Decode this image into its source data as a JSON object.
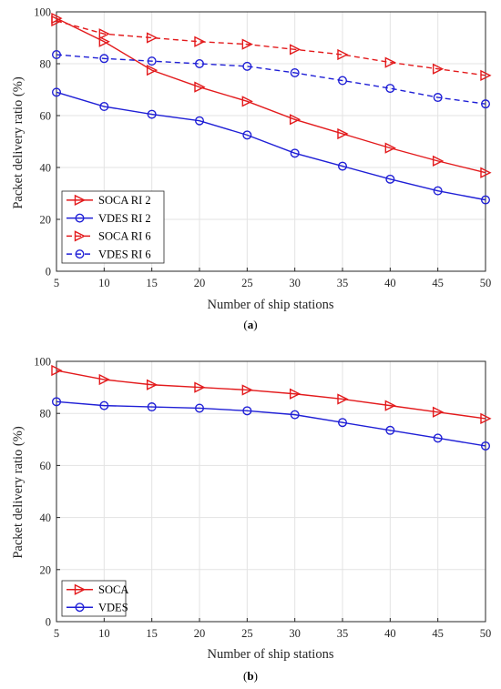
{
  "chart_data": [
    {
      "type": "line",
      "panel_label": "a",
      "xlabel": "Number of ship stations",
      "ylabel": "Packet delivery ratio (%)",
      "xlim": [
        5,
        50
      ],
      "ylim": [
        0,
        100
      ],
      "x_ticks": [
        5,
        10,
        15,
        20,
        25,
        30,
        35,
        40,
        45,
        50
      ],
      "y_ticks": [
        0,
        20,
        40,
        60,
        80,
        100
      ],
      "grid": true,
      "legend_position": "bottom-left",
      "x": [
        5,
        10,
        15,
        20,
        25,
        30,
        35,
        40,
        45,
        50
      ],
      "series": [
        {
          "name": "SOCA RI 2",
          "color": "#e31a1c",
          "marker": "triangle-right",
          "dash": "solid",
          "values": [
            97.5,
            88.5,
            77.5,
            71,
            65.5,
            58.5,
            53,
            47.5,
            42.5,
            38
          ]
        },
        {
          "name": "VDES RI 2",
          "color": "#1f1fd6",
          "marker": "circle",
          "dash": "solid",
          "values": [
            69,
            63.5,
            60.5,
            58,
            52.5,
            45.5,
            40.5,
            35.5,
            31,
            27.5
          ]
        },
        {
          "name": "SOCA RI 6",
          "color": "#e31a1c",
          "marker": "triangle-right",
          "dash": "dashed",
          "values": [
            96.5,
            91.5,
            90,
            88.5,
            87.5,
            85.5,
            83.5,
            80.5,
            78,
            75.5
          ]
        },
        {
          "name": "VDES RI 6",
          "color": "#1f1fd6",
          "marker": "circle",
          "dash": "dashed",
          "values": [
            83.5,
            82,
            81,
            80,
            79,
            76.5,
            73.5,
            70.5,
            67,
            64.5
          ]
        }
      ]
    },
    {
      "type": "line",
      "panel_label": "b",
      "xlabel": "Number of ship stations",
      "ylabel": "Packet delivery ratio (%)",
      "xlim": [
        5,
        50
      ],
      "ylim": [
        0,
        100
      ],
      "x_ticks": [
        5,
        10,
        15,
        20,
        25,
        30,
        35,
        40,
        45,
        50
      ],
      "y_ticks": [
        0,
        20,
        40,
        60,
        80,
        100
      ],
      "grid": true,
      "legend_position": "bottom-left",
      "x": [
        5,
        10,
        15,
        20,
        25,
        30,
        35,
        40,
        45,
        50
      ],
      "series": [
        {
          "name": "SOCA",
          "color": "#e31a1c",
          "marker": "triangle-right",
          "dash": "solid",
          "values": [
            96.5,
            93,
            91,
            90,
            89,
            87.5,
            85.5,
            83,
            80.5,
            78
          ]
        },
        {
          "name": "VDES",
          "color": "#1f1fd6",
          "marker": "circle",
          "dash": "solid",
          "values": [
            84.5,
            83,
            82.5,
            82,
            81,
            79.5,
            76.5,
            73.5,
            70.5,
            67.5
          ]
        }
      ]
    }
  ]
}
